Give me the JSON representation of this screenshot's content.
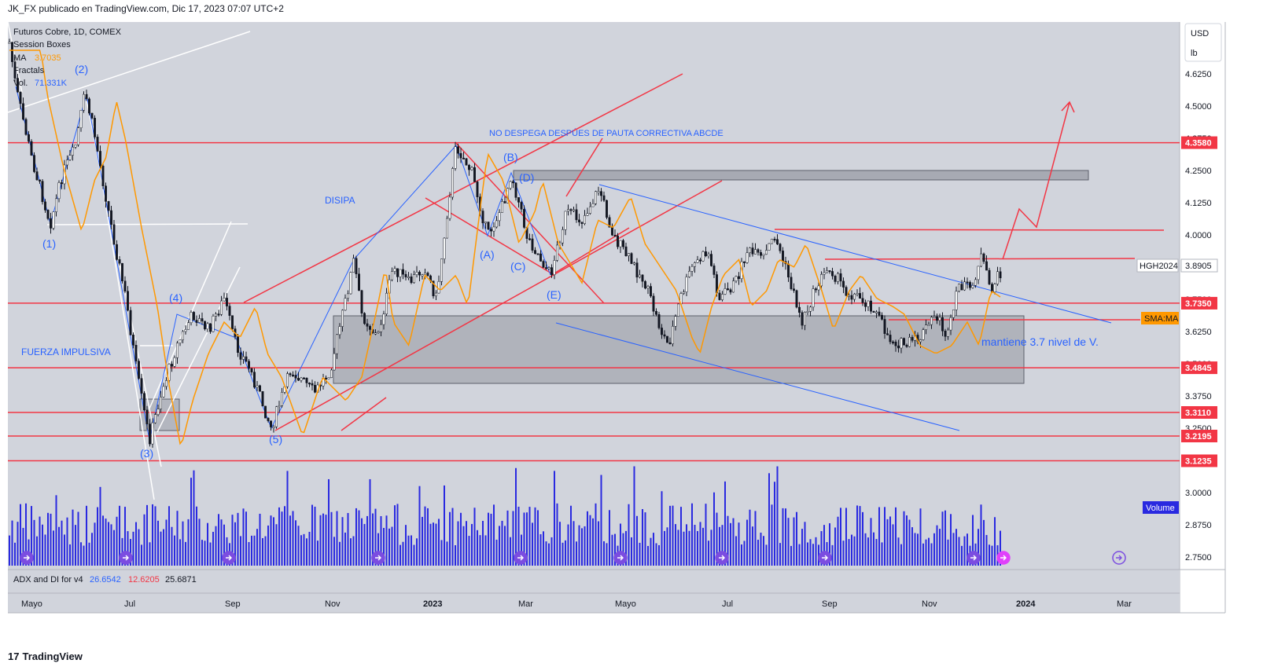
{
  "header": {
    "text": "JK_FX publicado en TradingView.com, Dic 17, 2023 07:07 UTC+2"
  },
  "legend": {
    "symbol": "Futuros Cobre, 1D, COMEX",
    "session": "Session Boxes",
    "ma_label": "MA",
    "ma_value": "3.7035",
    "fractals": "Fractals",
    "vol_label": "Vol.",
    "vol_value": "71.331K"
  },
  "currency": {
    "unit": "USD",
    "qty": "lb"
  },
  "footer": {
    "brand": "TradingView"
  },
  "indicator": {
    "name": "ADX and DI for v4",
    "adx": "26.6542",
    "di_minus": "12.6205",
    "di_plus": "25.6871"
  },
  "chart_data": {
    "type": "candlestick",
    "y_ticks": [
      "4.6250",
      "4.5000",
      "4.3750",
      "4.2500",
      "4.1250",
      "4.0000",
      "3.8750",
      "3.7500",
      "3.6250",
      "3.5000",
      "3.3750",
      "3.2500",
      "3.1250",
      "3.0000",
      "2.8750",
      "2.7500"
    ],
    "x_ticks": [
      "Mayo",
      "Jul",
      "Sep",
      "Nov",
      "2023",
      "Mar",
      "Mayo",
      "Jul",
      "Sep",
      "Nov",
      "2024",
      "Mar"
    ],
    "price_levels": [
      {
        "label": "4.3580",
        "value": 4.358
      },
      {
        "label": "3.7350",
        "value": 3.735
      },
      {
        "label": "3.4845",
        "value": 3.4845
      },
      {
        "label": "3.3110",
        "value": 3.311
      },
      {
        "label": "3.2195",
        "value": 3.2195
      },
      {
        "label": "3.1235",
        "value": 3.1235
      }
    ],
    "last_price": {
      "symbol": "HGH2024",
      "value": "3.8905"
    },
    "ma_tag": "SMA:MA",
    "volume_tag": "Volume",
    "wave_labels": [
      "(1)",
      "(2)",
      "(3)",
      "(4)",
      "(5)",
      "(A)",
      "(B)",
      "(C)",
      "(D)",
      "(E)"
    ],
    "annotations": [
      "NO DESPEGA DESPÚES DE PAUTA CORRECTIVA ABCDE",
      "DISIPA",
      "FUERZA IMPULSIVA",
      "mantiene 3.7 nivel de V."
    ],
    "colors": {
      "bg": "#d1d4dc",
      "levels": "#f23645",
      "ma": "#ff9800",
      "volume": "#2929e0",
      "trend": "#2962ff",
      "box": "#9598a1"
    }
  }
}
